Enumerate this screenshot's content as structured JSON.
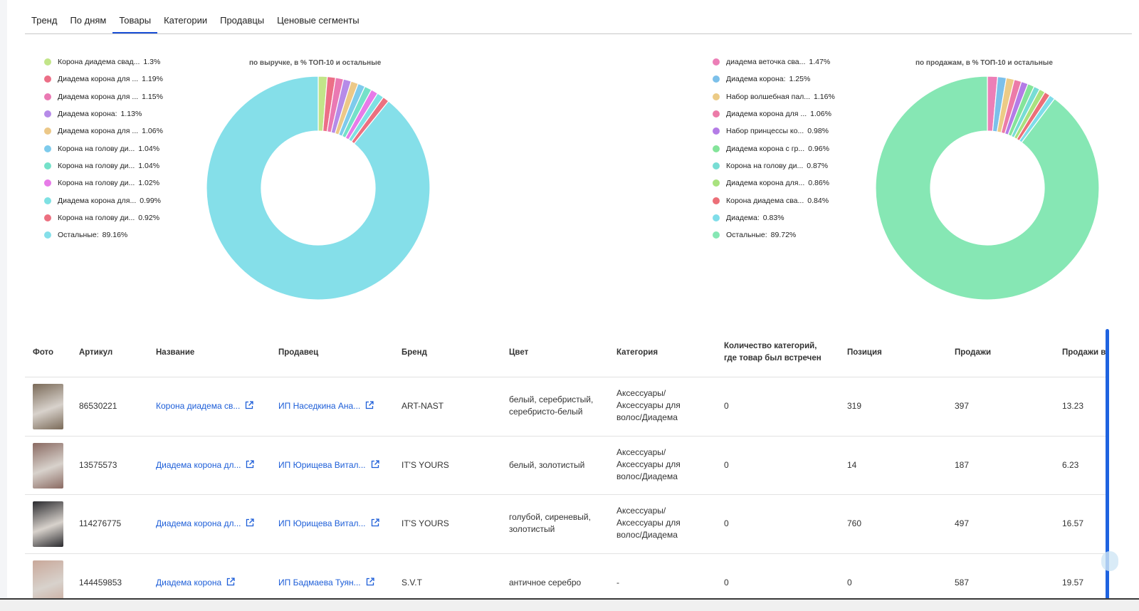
{
  "tabs": [
    "Тренд",
    "По дням",
    "Товары",
    "Категории",
    "Продавцы",
    "Ценовые сегменты"
  ],
  "active_tab": "Товары",
  "revenue_chart": {
    "title": "по выручке, в % ТОП-10 и остальные",
    "legend": [
      {
        "name": "Корона диадема свад...",
        "pct": "1.3%",
        "color": "#c2e589"
      },
      {
        "name": "Диадема корона для ...",
        "pct": "1.19%",
        "color": "#ec6f87"
      },
      {
        "name": "Диадема корона для ...",
        "pct": "1.15%",
        "color": "#ea79b3"
      },
      {
        "name": "Диадема корона:",
        "pct": "1.13%",
        "color": "#b68be8"
      },
      {
        "name": "Диадема корона для ...",
        "pct": "1.06%",
        "color": "#ecc888"
      },
      {
        "name": "Корона на голову ди...",
        "pct": "1.04%",
        "color": "#7ecbec"
      },
      {
        "name": "Корона на голову ди...",
        "pct": "1.04%",
        "color": "#75e1c9"
      },
      {
        "name": "Корона на голову ди...",
        "pct": "1.02%",
        "color": "#e77be8"
      },
      {
        "name": "Диадема корона для...",
        "pct": "0.99%",
        "color": "#7fe1e3"
      },
      {
        "name": "Корона на голову ди...",
        "pct": "0.92%",
        "color": "#ec7080"
      },
      {
        "name": "Остальные:",
        "pct": "89.16%",
        "color": "#85dfe9"
      }
    ]
  },
  "sales_chart": {
    "title": "по продажам, в % ТОП-10 и остальные",
    "legend": [
      {
        "name": "диадема веточка сва...",
        "pct": "1.47%",
        "color": "#ec7fb7"
      },
      {
        "name": "Диадема корона:",
        "pct": "1.25%",
        "color": "#7cc0ea"
      },
      {
        "name": "Набор волшебная пал...",
        "pct": "1.16%",
        "color": "#eccb86"
      },
      {
        "name": "Диадема корона для ...",
        "pct": "1.06%",
        "color": "#ec7ba8"
      },
      {
        "name": "Набор принцессы ко...",
        "pct": "0.98%",
        "color": "#b47ce6"
      },
      {
        "name": "Диадема корона с гр...",
        "pct": "0.96%",
        "color": "#84e49a"
      },
      {
        "name": "Корона на голову ди...",
        "pct": "0.87%",
        "color": "#78ddd4"
      },
      {
        "name": "Диадема корона для...",
        "pct": "0.86%",
        "color": "#a9e27f"
      },
      {
        "name": "Корона диадема сва...",
        "pct": "0.84%",
        "color": "#ec6f78"
      },
      {
        "name": "Диадема:",
        "pct": "0.83%",
        "color": "#7fdde9"
      },
      {
        "name": "Остальные:",
        "pct": "89.72%",
        "color": "#86e7b4"
      }
    ]
  },
  "table": {
    "headers": [
      "Фото",
      "Артикул",
      "Название",
      "Продавец",
      "Бренд",
      "Цвет",
      "Категория",
      "Количество категорий, где товар был встречен",
      "Позиция",
      "Продажи",
      "Продажи в"
    ],
    "rows": [
      {
        "article": "86530221",
        "name": "Корона диадема св...",
        "seller": "ИП Наседкина Ана...",
        "brand": "ART-NAST",
        "color": "белый, серебристый, серебристо-белый",
        "category": "Аксессуары/ Аксессуары для волос/Диадема",
        "cat_count": "0",
        "position": "319",
        "sales": "397",
        "sales_day": "13.23",
        "photo_color": "#7a6a58"
      },
      {
        "article": "13575573",
        "name": "Диадема корона дл...",
        "seller": "ИП Юрищева Витал...",
        "brand": "IT'S YOURS",
        "color": "белый, золотистый",
        "category": "Аксессуары/ Аксессуары для волос/Диадема",
        "cat_count": "0",
        "position": "14",
        "sales": "187",
        "sales_day": "6.23",
        "photo_color": "#8a6a62"
      },
      {
        "article": "114276775",
        "name": "Диадема корона дл...",
        "seller": "ИП Юрищева Витал...",
        "brand": "IT'S YOURS",
        "color": "голубой, сиреневый, золотистый",
        "category": "Аксессуары/ Аксессуары для волос/Диадема",
        "cat_count": "0",
        "position": "760",
        "sales": "497",
        "sales_day": "16.57",
        "photo_color": "#2a2a2e"
      },
      {
        "article": "144459853",
        "name": "Диадема корона",
        "seller": "ИП Бадмаева Туян...",
        "brand": "S.V.T",
        "color": "античное серебро",
        "category": "-",
        "cat_count": "0",
        "position": "0",
        "sales": "587",
        "sales_day": "19.57",
        "photo_color": "#c9a89a"
      }
    ]
  }
}
